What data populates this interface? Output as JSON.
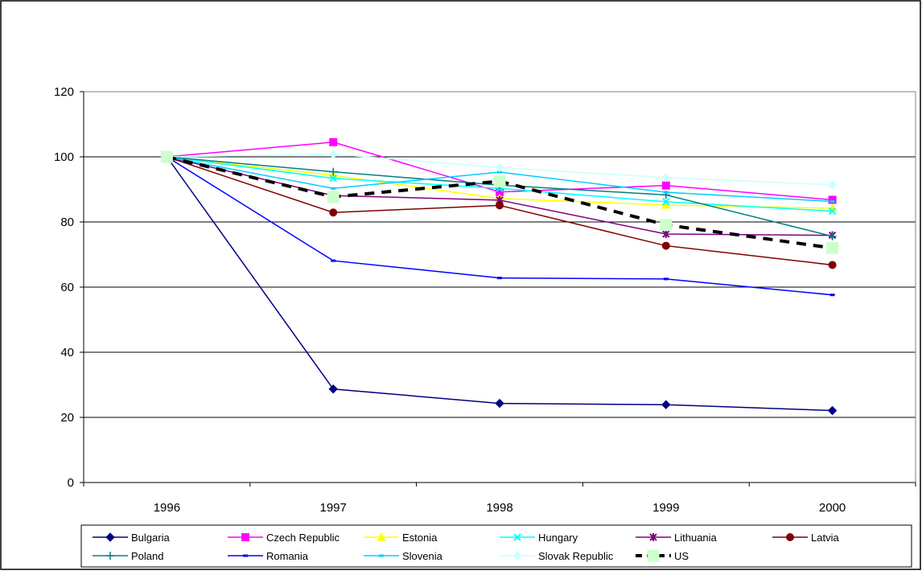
{
  "chart_data": {
    "type": "line",
    "title": "",
    "xlabel": "",
    "ylabel": "",
    "x": [
      "1996",
      "1997",
      "1998",
      "1999",
      "2000"
    ],
    "ylim": [
      0,
      120
    ],
    "yticks": [
      "0",
      "20",
      "40",
      "60",
      "80",
      "100",
      "120"
    ],
    "grid": "horizontal",
    "legend_position": "bottom",
    "series": [
      {
        "name": "Bulgaria",
        "color": "#000080",
        "marker": "diamond",
        "dash": "solid",
        "values": [
          100,
          28.7,
          24.3,
          23.9,
          22.1
        ]
      },
      {
        "name": "Czech Republic",
        "color": "#ff00ff",
        "marker": "square",
        "dash": "solid",
        "values": [
          100,
          104.5,
          89.2,
          91.2,
          86.8
        ]
      },
      {
        "name": "Estonia",
        "color": "#ffff00",
        "marker": "triangle",
        "dash": "solid",
        "values": [
          100,
          94.3,
          87.2,
          85.2,
          84.2
        ]
      },
      {
        "name": "Hungary",
        "color": "#00ffff",
        "marker": "x",
        "dash": "solid",
        "values": [
          100,
          93.4,
          90.3,
          86.2,
          83.3
        ]
      },
      {
        "name": "Lithuania",
        "color": "#800080",
        "marker": "star",
        "dash": "solid",
        "values": [
          100,
          88.1,
          86.7,
          76.3,
          75.9
        ]
      },
      {
        "name": "Latvia",
        "color": "#800000",
        "marker": "circle",
        "dash": "solid",
        "values": [
          100,
          82.9,
          85.1,
          72.7,
          66.8
        ]
      },
      {
        "name": "Poland",
        "color": "#008080",
        "marker": "plus",
        "dash": "solid",
        "values": [
          100,
          95.4,
          91.3,
          88.3,
          75.6
        ]
      },
      {
        "name": "Romania",
        "color": "#0000ff",
        "marker": "dash",
        "dash": "solid",
        "values": [
          100,
          68.1,
          62.8,
          62.5,
          57.6
        ]
      },
      {
        "name": "Slovenia",
        "color": "#00ccff",
        "marker": "dash",
        "dash": "solid",
        "values": [
          100,
          90.3,
          95.3,
          89.1,
          86.3
        ]
      },
      {
        "name": "Slovak Republic",
        "color": "#ccffff",
        "marker": "diamond",
        "dash": "solid",
        "values": [
          100,
          100.8,
          96.7,
          93.6,
          91.4
        ]
      },
      {
        "name": "US",
        "color": "#000000",
        "marker": "square-large",
        "marker_color": "#ccffcc",
        "dash": "dashed",
        "values": [
          100,
          87.7,
          92.5,
          79.1,
          72.0
        ]
      }
    ]
  }
}
